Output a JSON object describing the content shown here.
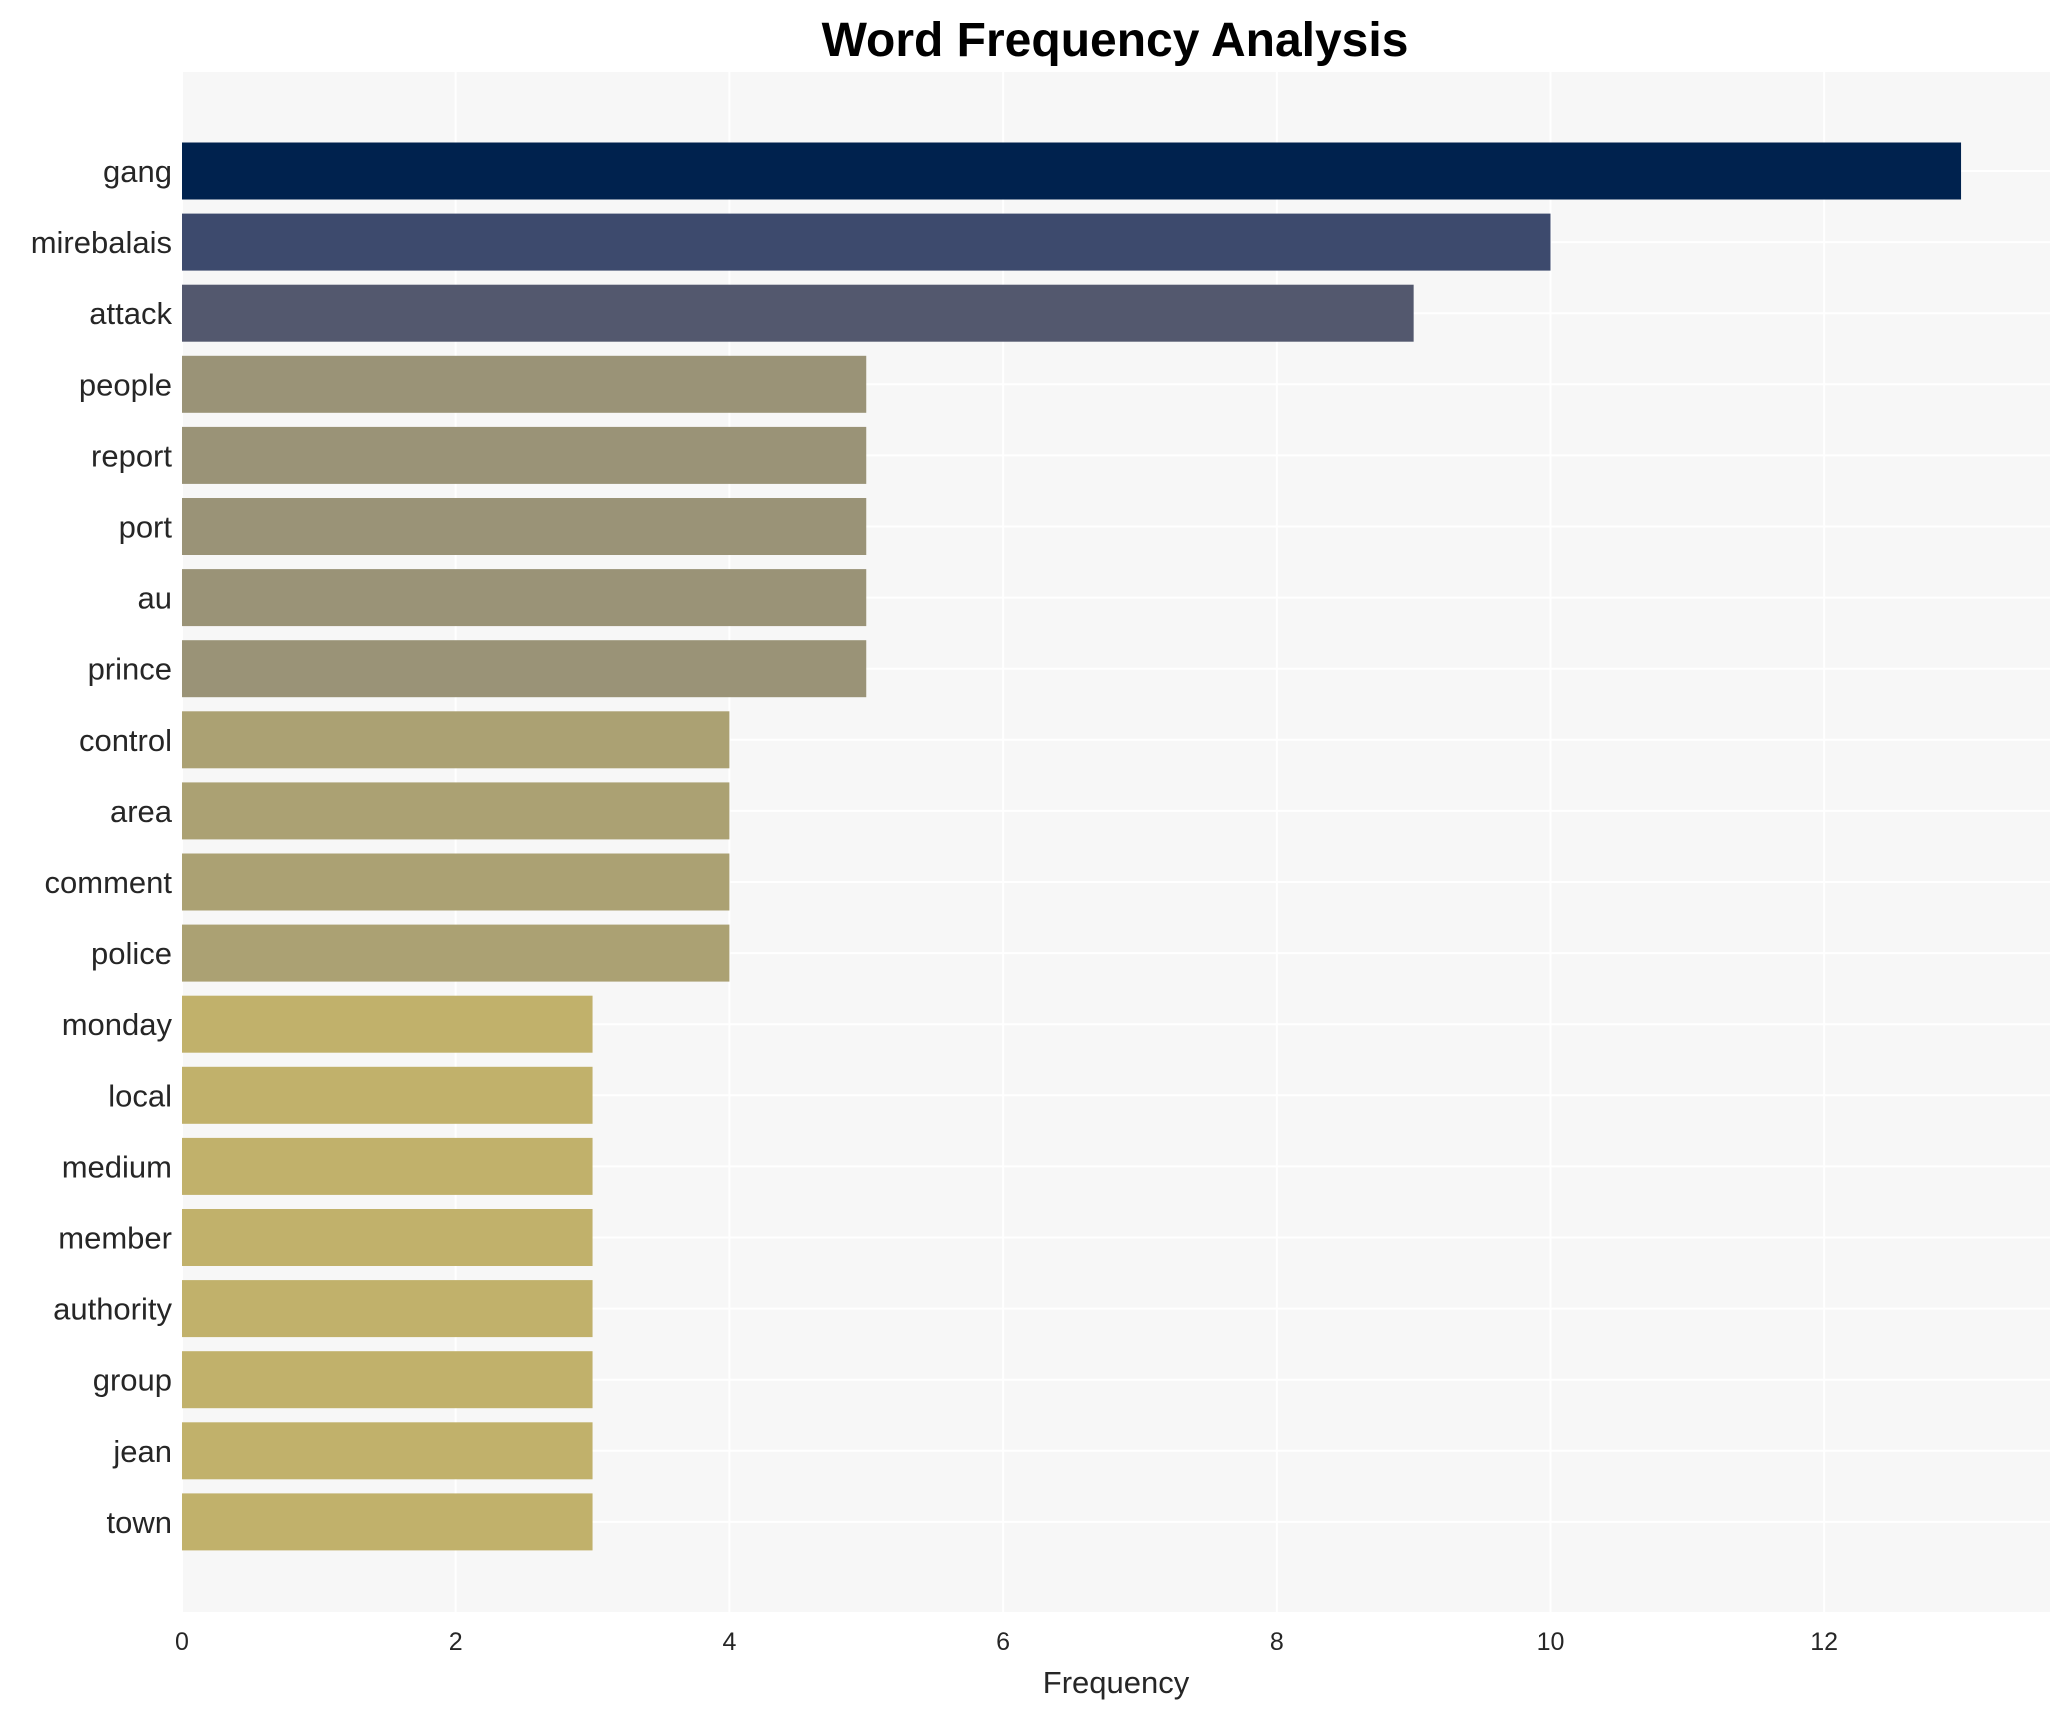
{
  "chart_data": {
    "type": "bar",
    "orientation": "horizontal",
    "title": "Word Frequency Analysis",
    "xlabel": "Frequency",
    "ylabel": "",
    "xlim": [
      0,
      13.65
    ],
    "xticks": [
      0,
      2,
      4,
      6,
      8,
      10,
      12
    ],
    "grid": true,
    "categories": [
      "gang",
      "mirebalais",
      "attack",
      "people",
      "report",
      "port",
      "au",
      "prince",
      "control",
      "area",
      "comment",
      "police",
      "monday",
      "local",
      "medium",
      "member",
      "authority",
      "group",
      "jean",
      "town"
    ],
    "values": [
      13,
      10,
      9,
      5,
      5,
      5,
      5,
      5,
      4,
      4,
      4,
      4,
      3,
      3,
      3,
      3,
      3,
      3,
      3,
      3
    ],
    "colors": [
      "#00224e",
      "#3d4a6d",
      "#53586e",
      "#9a9377",
      "#9a9377",
      "#9a9377",
      "#9a9377",
      "#9a9377",
      "#aba173",
      "#aba173",
      "#aba173",
      "#aba173",
      "#c1b16b",
      "#c1b16b",
      "#c1b16b",
      "#c1b16b",
      "#c1b16b",
      "#c1b16b",
      "#c1b16b",
      "#c1b16b"
    ],
    "plot_background": "#f7f7f7"
  }
}
